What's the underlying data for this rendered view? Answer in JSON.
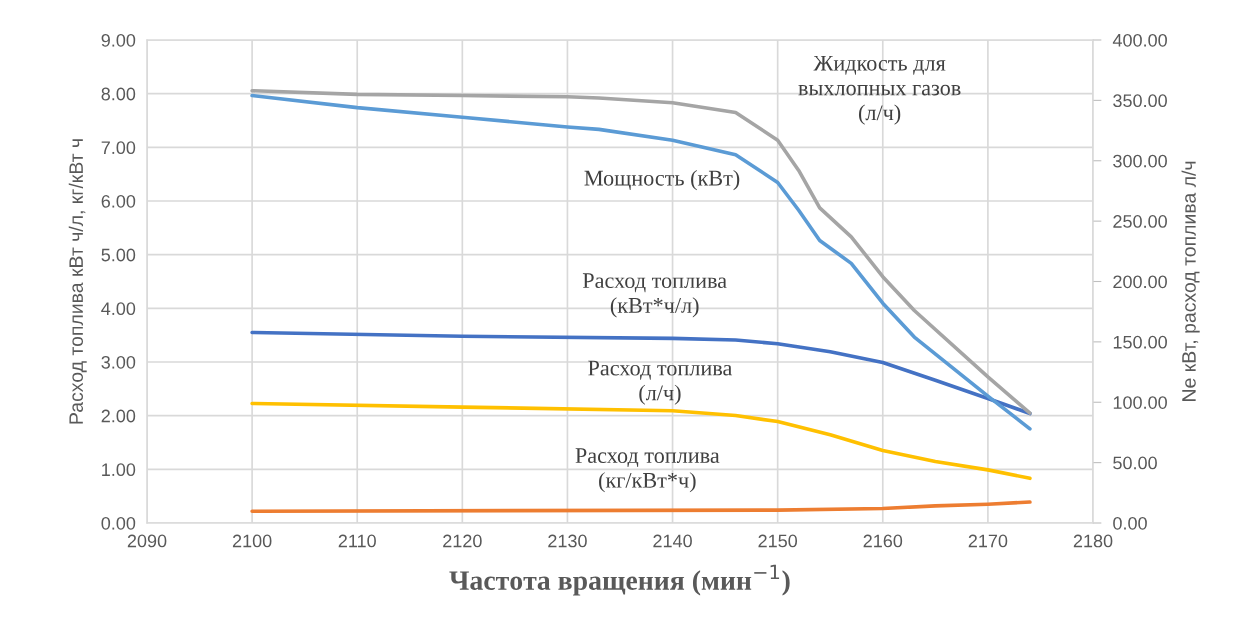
{
  "chart_data": {
    "type": "line",
    "xlabel": "Частота вращения (мин$^{−1}$)",
    "ylabel": "Расход топлива кВт ч/л, кг/кВт ч",
    "y2label": "Ne кВт, расход топлива л/ч",
    "xlim": [
      2090,
      2180
    ],
    "xticks": [
      2090,
      2100,
      2110,
      2120,
      2130,
      2140,
      2150,
      2160,
      2170,
      2180
    ],
    "ylim": [
      0,
      9
    ],
    "yticks": [
      {
        "value": 0,
        "label": "0.00"
      },
      {
        "value": 1,
        "label": "1.00"
      },
      {
        "value": 2,
        "label": "2.00"
      },
      {
        "value": 3,
        "label": "3.00"
      },
      {
        "value": 4,
        "label": "4.00"
      },
      {
        "value": 5,
        "label": "5.00"
      },
      {
        "value": 6,
        "label": "6.00"
      },
      {
        "value": 7,
        "label": "7.00"
      },
      {
        "value": 8,
        "label": "8.00"
      },
      {
        "value": 9,
        "label": "9.00"
      }
    ],
    "y2lim": [
      0,
      400
    ],
    "y2ticks": [
      {
        "value": 0,
        "label": "0.00"
      },
      {
        "value": 50,
        "label": "50.00"
      },
      {
        "value": 100,
        "label": "100.00"
      },
      {
        "value": 150,
        "label": "150.00"
      },
      {
        "value": 200,
        "label": "200.00"
      },
      {
        "value": 250,
        "label": "250.00"
      },
      {
        "value": 300,
        "label": "300.00"
      },
      {
        "value": 350,
        "label": "350.00"
      },
      {
        "value": 400,
        "label": "400.00"
      }
    ],
    "grid": true,
    "legend": false,
    "marker": "none",
    "line_style": "solid",
    "series": [
      {
        "name": "Жидкость для\nвыхлопных газов\n(л/ч)",
        "color": "#a5a5a5",
        "axis": "y2",
        "x": [
          2100,
          2110,
          2120,
          2130,
          2133,
          2140,
          2146,
          2150,
          2152,
          2154,
          2157,
          2160,
          2163,
          2170,
          2174
        ],
        "values": [
          358,
          355,
          354,
          353,
          352,
          348,
          340,
          317,
          292,
          261,
          237,
          204,
          176,
          121,
          91
        ]
      },
      {
        "name": "Мощность (кВт)",
        "color": "#5b9bd5",
        "axis": "y2",
        "x": [
          2100,
          2110,
          2120,
          2130,
          2133,
          2140,
          2146,
          2150,
          2152,
          2154,
          2157,
          2160,
          2163,
          2170,
          2174
        ],
        "values": [
          354,
          344,
          336,
          328,
          326,
          317,
          305,
          282,
          259,
          234,
          215,
          182,
          154,
          105,
          78
        ]
      },
      {
        "name": "Расход топлива\n(кВт*ч/л)",
        "color": "#4472c4",
        "axis": "y",
        "x": [
          2100,
          2120,
          2140,
          2146,
          2150,
          2155,
          2160,
          2165,
          2170,
          2174
        ],
        "values": [
          3.55,
          3.48,
          3.44,
          3.41,
          3.34,
          3.19,
          2.99,
          2.66,
          2.32,
          2.04
        ]
      },
      {
        "name": "Расход топлива\n(л/ч)",
        "color": "#ffc000",
        "axis": "y2",
        "x": [
          2100,
          2120,
          2140,
          2146,
          2150,
          2155,
          2160,
          2165,
          2170,
          2174
        ],
        "values": [
          99,
          96,
          93,
          89,
          84,
          73,
          60,
          51,
          44,
          37
        ]
      },
      {
        "name": "Расход топлива\n(кг/кВт*ч)",
        "color": "#ed7d31",
        "axis": "y",
        "x": [
          2100,
          2150,
          2160,
          2165,
          2170,
          2174
        ],
        "values": [
          0.22,
          0.24,
          0.27,
          0.32,
          0.35,
          0.39
        ]
      }
    ]
  }
}
